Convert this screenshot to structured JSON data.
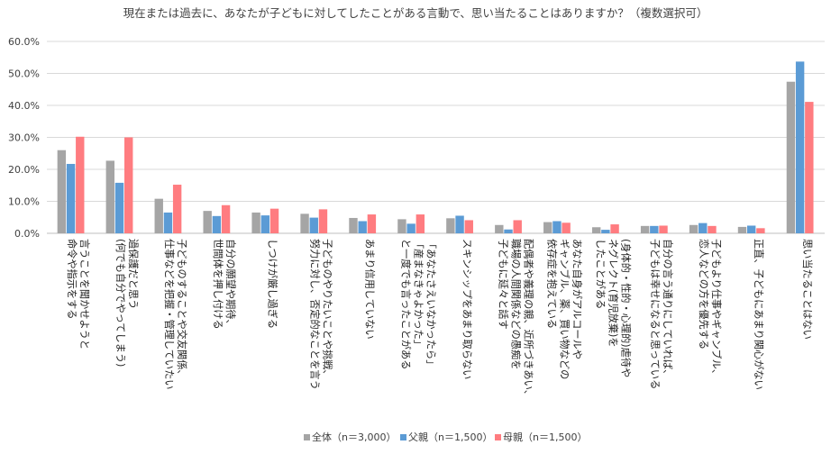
{
  "chart_data": {
    "type": "bar",
    "title": "現在または過去に、あなたが子どもに対してしたことがある言動で、思い当たることはありますか？（複数選択可）",
    "xlabel": "",
    "ylabel": "",
    "ylim": [
      0,
      60
    ],
    "y_ticks": [
      "0.0%",
      "10.0%",
      "20.0%",
      "30.0%",
      "40.0%",
      "50.0%",
      "60.0%"
    ],
    "grid": true,
    "legend_position": "bottom",
    "colors": [
      "#a5a5a5",
      "#5b9bd5",
      "#ff7c80"
    ],
    "categories": [
      [
        "言うことを聞かせようと",
        "命令や指示をする"
      ],
      [
        "過保護だと思う",
        "(何でも自分でやってしまう)"
      ],
      [
        "子どものすることや交友関係、",
        "仕事などを把握・管理していたい"
      ],
      [
        "自分の願望や期待、",
        "世間体を押し付ける"
      ],
      [
        "しつけが厳し過ぎる"
      ],
      [
        "子どものやりたいことや挑戦、",
        "努力に対し、否定的なことを言う"
      ],
      [
        "あまり信用していない"
      ],
      [
        "「あなたさえいなかったら」",
        "「産まなきゃよかった」",
        "と一度でも言ったことがある"
      ],
      [
        "スキンシップをあまり取らない"
      ],
      [
        "配偶者や義理の親、近所づきあい、",
        "職場の人間関係などの愚痴を",
        "子どもに延々と話す"
      ],
      [
        "あなた自身がアルコールや",
        "ギャンブル、薬、買い物などの",
        "依存症を抱えている"
      ],
      [
        "(身体的・性的・心理的)虐待や",
        "ネグレクト(育児放棄)を",
        "したことがある"
      ],
      [
        "自分の言う通りにしていれば、",
        "子どもは幸せになると思っている"
      ],
      [
        "子どもより仕事やギャンブル、",
        "恋人などの方を優先する"
      ],
      [
        "正直、子どもにあまり関心がない"
      ],
      [
        "思い当たることはない"
      ]
    ],
    "series": [
      {
        "name": "全体（n＝3,000）",
        "values": [
          26.0,
          22.7,
          10.8,
          7.0,
          6.5,
          6.1,
          4.8,
          4.4,
          4.7,
          2.6,
          3.5,
          1.9,
          2.3,
          2.6,
          2.0,
          47.4
        ]
      },
      {
        "name": "父親（n＝1,500）",
        "values": [
          21.7,
          15.8,
          6.5,
          5.4,
          5.6,
          4.9,
          3.8,
          3.0,
          5.5,
          1.2,
          3.8,
          1.1,
          2.3,
          3.2,
          2.4,
          53.7
        ]
      },
      {
        "name": "母親（n＝1,500）",
        "values": [
          30.2,
          30.0,
          15.2,
          8.8,
          7.7,
          7.5,
          5.9,
          5.9,
          4.1,
          4.1,
          3.3,
          2.8,
          2.4,
          2.3,
          1.6,
          41.1
        ]
      }
    ]
  }
}
